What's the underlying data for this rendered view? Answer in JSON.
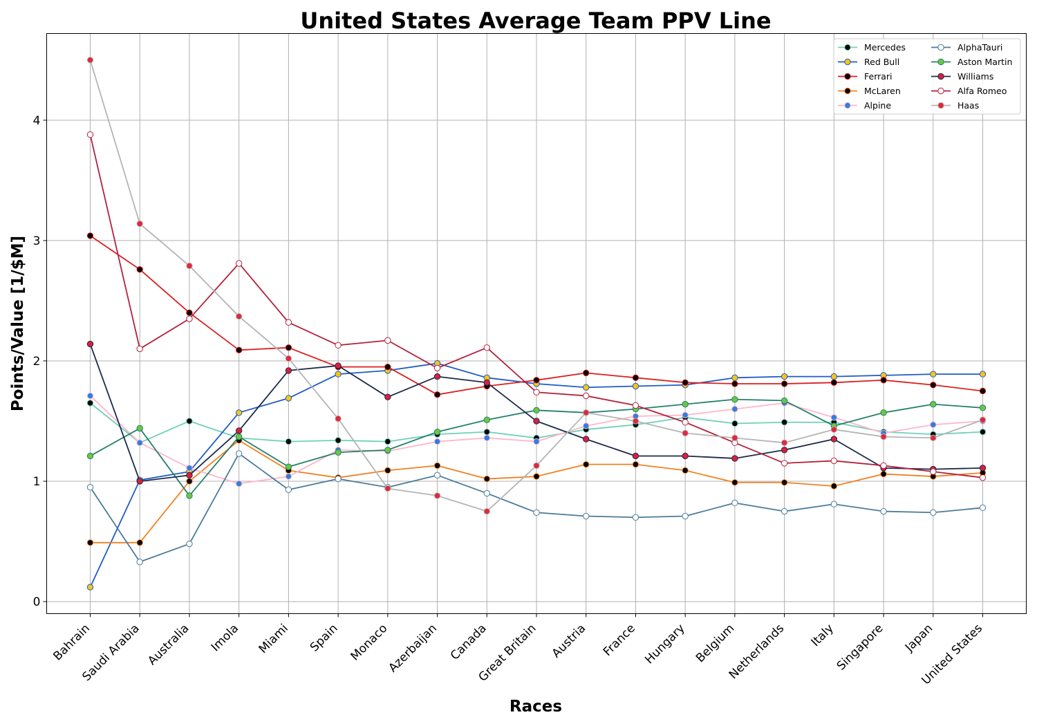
{
  "chart_data": {
    "type": "line",
    "title": "United States Average Team PPV Line",
    "xlabel": "Races",
    "ylabel": "Points/Value [1/$M]",
    "ylim": [
      -0.1,
      4.72
    ],
    "yticks": [
      0,
      1,
      2,
      3,
      4
    ],
    "grid": true,
    "legend_position": "top-right",
    "categories": [
      "Bahrain",
      "Saudi Arabia",
      "Australia",
      "Imola",
      "Miami",
      "Spain",
      "Monaco",
      "Azerbaijan",
      "Canada",
      "Great Britain",
      "Austria",
      "France",
      "Hungary",
      "Belgium",
      "Netherlands",
      "Italy",
      "Singapore",
      "Japan",
      "United States"
    ],
    "series": [
      {
        "name": "Mercedes",
        "line_color": "#6fd0b8",
        "marker_fill": "#000000",
        "marker_edge": "#6fd0b8",
        "values": [
          1.65,
          1.32,
          1.5,
          1.36,
          1.33,
          1.34,
          1.33,
          1.39,
          1.41,
          1.36,
          1.43,
          1.47,
          1.53,
          1.48,
          1.49,
          1.49,
          1.41,
          1.39,
          1.41
        ]
      },
      {
        "name": "Red Bull",
        "line_color": "#1e5bc6",
        "marker_fill": "#f5c518",
        "marker_edge": "#1e5bc6",
        "values": [
          0.12,
          1.01,
          1.08,
          1.57,
          1.69,
          1.89,
          1.92,
          1.98,
          1.86,
          1.81,
          1.78,
          1.79,
          1.8,
          1.86,
          1.87,
          1.87,
          1.88,
          1.89,
          1.89
        ]
      },
      {
        "name": "Ferrari",
        "line_color": "#dc1e1e",
        "marker_fill": "#000000",
        "marker_edge": "#dc1e1e",
        "values": [
          3.04,
          2.76,
          2.4,
          2.09,
          2.11,
          1.95,
          1.95,
          1.72,
          1.79,
          1.84,
          1.9,
          1.86,
          1.82,
          1.81,
          1.81,
          1.82,
          1.84,
          1.8,
          1.75
        ]
      },
      {
        "name": "McLaren",
        "line_color": "#f08020",
        "marker_fill": "#000000",
        "marker_edge": "#f08020",
        "values": [
          0.49,
          0.49,
          1.0,
          1.34,
          1.09,
          1.03,
          1.09,
          1.13,
          1.02,
          1.04,
          1.14,
          1.14,
          1.09,
          0.99,
          0.99,
          0.96,
          1.06,
          1.04,
          1.07
        ]
      },
      {
        "name": "Alpine",
        "line_color": "#ffb6c8",
        "marker_fill": "#2d7fe0",
        "marker_edge": "#ffb6c8",
        "values": [
          1.71,
          1.32,
          1.11,
          0.98,
          1.04,
          1.26,
          1.25,
          1.33,
          1.36,
          1.33,
          1.46,
          1.54,
          1.55,
          1.6,
          1.65,
          1.53,
          1.4,
          1.47,
          1.5
        ]
      },
      {
        "name": "AlphaTauri",
        "line_color": "#4a7a9b",
        "marker_fill": "#ffffff",
        "marker_edge": "#4a7a9b",
        "values": [
          0.95,
          0.33,
          0.48,
          1.23,
          0.93,
          1.02,
          0.95,
          1.05,
          0.9,
          0.74,
          0.71,
          0.7,
          0.71,
          0.82,
          0.75,
          0.81,
          0.75,
          0.74,
          0.78
        ]
      },
      {
        "name": "Aston Martin",
        "line_color": "#23806a",
        "marker_fill": "#6cc644",
        "marker_edge": "#23806a",
        "values": [
          1.21,
          1.44,
          0.88,
          1.37,
          1.12,
          1.24,
          1.26,
          1.41,
          1.51,
          1.59,
          1.57,
          1.6,
          1.64,
          1.68,
          1.67,
          1.46,
          1.57,
          1.64,
          1.61
        ]
      },
      {
        "name": "Williams",
        "line_color": "#1a2a4a",
        "marker_fill": "#dc1e3c",
        "marker_edge": "#1a2a4a",
        "values": [
          2.14,
          1.0,
          1.05,
          1.42,
          1.92,
          1.96,
          1.7,
          1.87,
          1.82,
          1.5,
          1.35,
          1.21,
          1.21,
          1.19,
          1.26,
          1.35,
          1.11,
          1.1,
          1.11
        ]
      },
      {
        "name": "Alfa Romeo",
        "line_color": "#b4203c",
        "marker_fill": "#ffffff",
        "marker_edge": "#b4203c",
        "values": [
          3.88,
          2.1,
          2.35,
          2.81,
          2.32,
          2.13,
          2.17,
          1.94,
          2.11,
          1.74,
          1.71,
          1.63,
          1.49,
          1.32,
          1.15,
          1.17,
          1.13,
          1.08,
          1.03
        ]
      },
      {
        "name": "Haas",
        "line_color": "#b4b4b4",
        "marker_fill": "#e0283c",
        "marker_edge": "#b4b4b4",
        "values": [
          4.5,
          3.14,
          2.79,
          2.37,
          2.02,
          1.52,
          0.94,
          0.88,
          0.75,
          1.13,
          1.57,
          1.5,
          1.4,
          1.36,
          1.32,
          1.43,
          1.37,
          1.36,
          1.51
        ]
      }
    ]
  }
}
